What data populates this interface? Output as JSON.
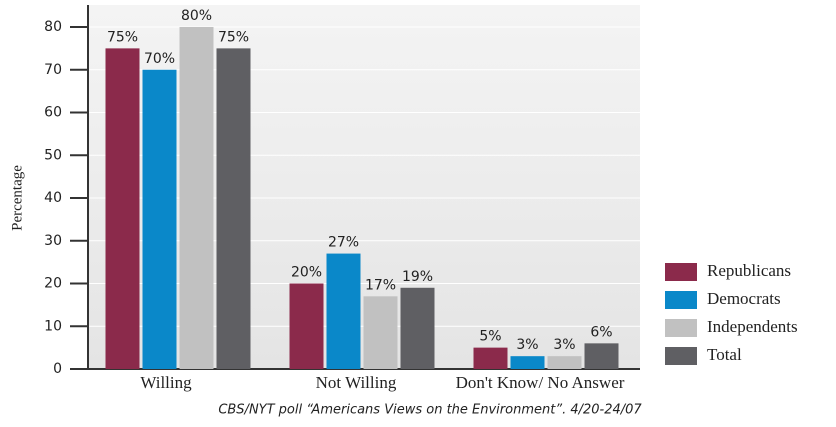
{
  "chart_data": {
    "type": "bar",
    "y_label": "Percentage",
    "categories": [
      "Willing",
      "Not Willing",
      "Don't Know/ No Answer"
    ],
    "series": [
      {
        "name": "Republicans",
        "color": "#8b2a4b",
        "values": [
          75,
          20,
          5
        ],
        "value_labels": [
          "75%",
          "20%",
          "5%"
        ]
      },
      {
        "name": "Democrats",
        "color": "#0a88c9",
        "values": [
          70,
          27,
          3
        ],
        "value_labels": [
          "70%",
          "27%",
          "3%"
        ]
      },
      {
        "name": "Independents",
        "color": "#c1c1c1",
        "values": [
          80,
          17,
          3
        ],
        "value_labels": [
          "80%",
          "17%",
          "3%"
        ]
      },
      {
        "name": "Total",
        "color": "#5f5f63",
        "values": [
          75,
          19,
          6
        ],
        "value_labels": [
          "75%",
          "19%",
          "6%"
        ]
      }
    ],
    "ylim": [
      0,
      80
    ],
    "yticks": [
      0,
      10,
      20,
      30,
      40,
      50,
      60,
      70,
      80
    ],
    "grid": true,
    "legend": "right",
    "source": "CBS/NYT poll “Americans Views on the Environment”. 4/20-24/07"
  }
}
